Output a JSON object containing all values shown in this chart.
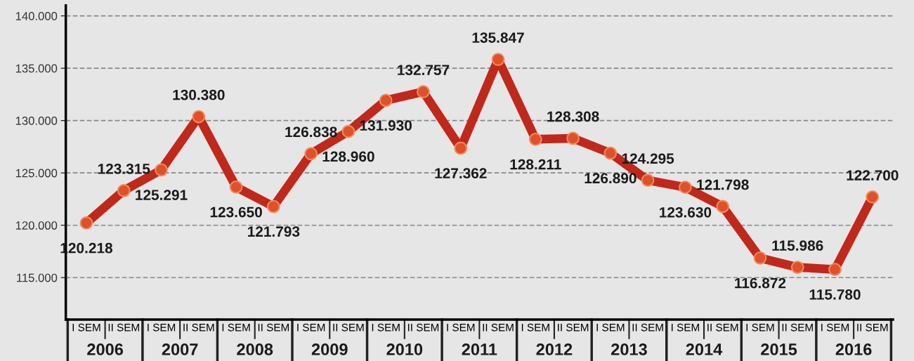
{
  "chart_data": {
    "type": "line",
    "categories": [
      "I SEM",
      "II SEM",
      "I SEM",
      "II SEM",
      "I SEM",
      "II SEM",
      "I SEM",
      "II SEM",
      "I SEM",
      "II SEM",
      "I SEM",
      "II SEM",
      "I SEM",
      "II SEM",
      "I SEM",
      "II SEM",
      "I SEM",
      "II SEM",
      "I SEM",
      "II SEM",
      "I SEM",
      "II SEM"
    ],
    "series": [
      {
        "color": "#c0281c",
        "values": [
          120218,
          123315,
          125291,
          130380,
          123650,
          121793,
          126838,
          128960,
          131930,
          132757,
          127362,
          135847,
          128211,
          128308,
          126890,
          124295,
          123630,
          121798,
          116872,
          115986,
          115780,
          122700
        ],
        "value_labels": [
          "120.218",
          "123.315",
          "125.291",
          "130.380",
          "123.650",
          "121.793",
          "126.838",
          "128.960",
          "131.930",
          "132.757",
          "127.362",
          "135.847",
          "128.211",
          "128.308",
          "126.890",
          "124.295",
          "123.630",
          "121.798",
          "116.872",
          "115.986",
          "115.780",
          "122.700"
        ]
      }
    ],
    "annotations": [
      "2006",
      "2007",
      "2008",
      "2009",
      "2010",
      "2011",
      "2012",
      "2013",
      "2014",
      "2015",
      "2016"
    ],
    "ylim": [
      111000,
      141000
    ],
    "yticks": [
      {
        "value": 115000,
        "label": "115.000"
      },
      {
        "value": 120000,
        "label": "120.000"
      },
      {
        "value": 125000,
        "label": "125.000"
      },
      {
        "value": 130000,
        "label": "130.000"
      },
      {
        "value": 135000,
        "label": "135.000"
      },
      {
        "value": 140000,
        "label": "140.000"
      }
    ],
    "grid": "y",
    "marker": "circle",
    "line_style": "solid",
    "legend": false
  }
}
